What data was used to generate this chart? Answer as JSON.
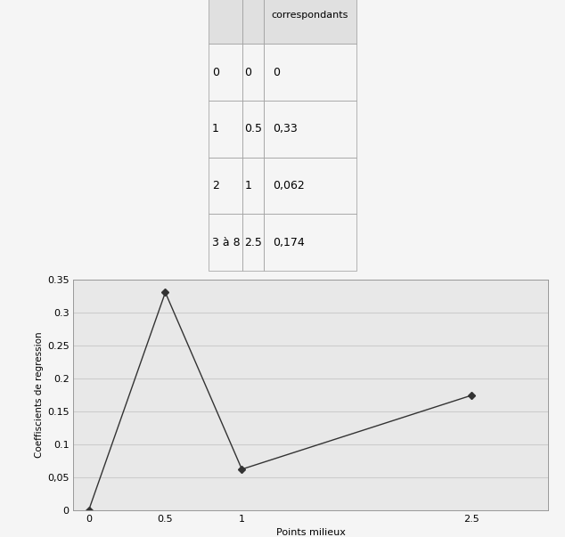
{
  "table_rows": [
    [
      "0",
      "0",
      "0"
    ],
    [
      "1",
      "0.5",
      "0,33"
    ],
    [
      "2",
      "1",
      "0,062"
    ],
    [
      "3 à 8",
      "2.5",
      "0,174"
    ]
  ],
  "col_headers": [
    "",
    "",
    "correspondants"
  ],
  "x_values": [
    0,
    0.5,
    1,
    2.5
  ],
  "y_values": [
    0,
    0.33,
    0.062,
    0.174
  ],
  "xlabel": "Points milieux",
  "ylabel": "Coeffiscients de regression",
  "ylim": [
    0,
    0.35
  ],
  "xlim": [
    -0.1,
    3.0
  ],
  "yticks": [
    0,
    0.05,
    0.1,
    0.15,
    0.2,
    0.25,
    0.3,
    0.35
  ],
  "xticks": [
    0,
    0.5,
    1,
    2.5
  ],
  "line_color": "#333333",
  "marker": "D",
  "marker_size": 4,
  "bg_color": "#e8e8e8",
  "fig_bg": "#f0f0f0",
  "table_bg": "#f5f5f5",
  "grid_color": "#cccccc"
}
